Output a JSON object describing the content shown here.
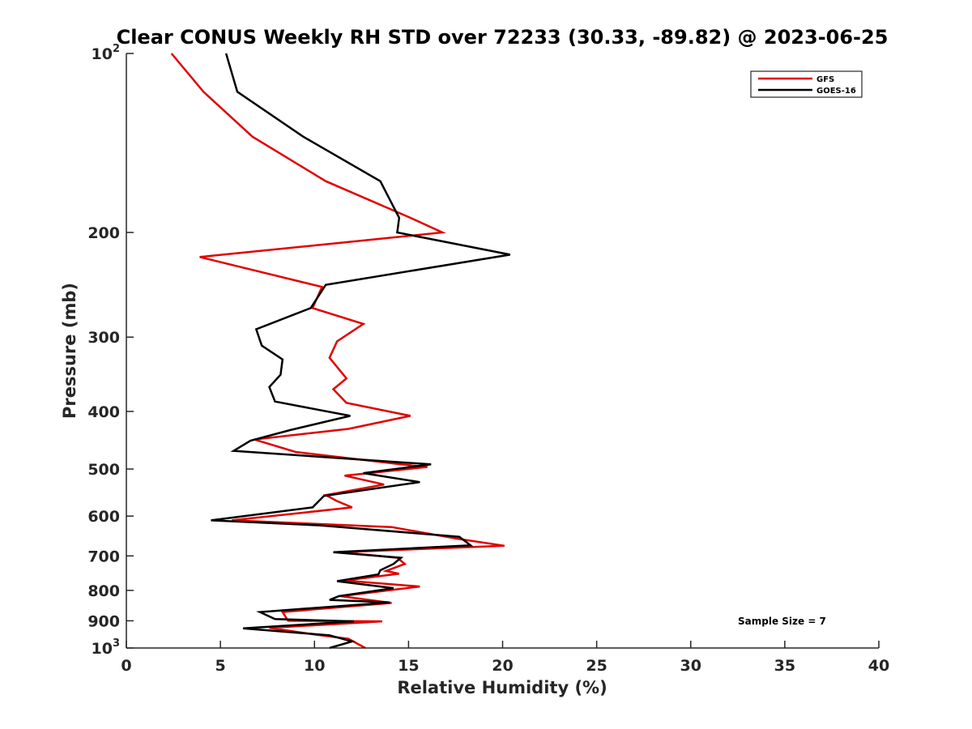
{
  "chart_data": {
    "type": "line",
    "title": "Clear CONUS Weekly RH STD over 72233 (30.33, -89.82) @ 2023-06-25",
    "xlabel": "Relative Humidity (%)",
    "ylabel": "Pressure (mb)",
    "xlim": [
      0,
      40
    ],
    "ylim": [
      100,
      1000
    ],
    "y_scale": "log",
    "y_reversed": true,
    "grid": false,
    "legend_position": "top-right",
    "annotation": "Sample Size = 7",
    "x_ticks": [
      "0",
      "5",
      "10",
      "15",
      "20",
      "25",
      "30",
      "35",
      "40"
    ],
    "y_ticks": [
      {
        "value": 100,
        "base": "10",
        "exp": "2"
      },
      {
        "value": 200,
        "base": "200",
        "exp": ""
      },
      {
        "value": 300,
        "base": "300",
        "exp": ""
      },
      {
        "value": 400,
        "base": "400",
        "exp": ""
      },
      {
        "value": 500,
        "base": "500",
        "exp": ""
      },
      {
        "value": 600,
        "base": "600",
        "exp": ""
      },
      {
        "value": 700,
        "base": "700",
        "exp": ""
      },
      {
        "value": 800,
        "base": "800",
        "exp": ""
      },
      {
        "value": 900,
        "base": "900",
        "exp": ""
      },
      {
        "value": 1000,
        "base": "10",
        "exp": "3"
      }
    ],
    "series": [
      {
        "name": "GFS",
        "color": "#e00000",
        "points": [
          [
            2.4,
            100
          ],
          [
            4.1,
            116
          ],
          [
            6.7,
            138
          ],
          [
            10.6,
            164
          ],
          [
            15.1,
            189
          ],
          [
            16.8,
            200
          ],
          [
            3.9,
            220
          ],
          [
            10.4,
            247
          ],
          [
            9.9,
            268
          ],
          [
            12.6,
            285
          ],
          [
            11.2,
            305
          ],
          [
            10.8,
            325
          ],
          [
            11.7,
            352
          ],
          [
            11.0,
            367
          ],
          [
            11.7,
            387
          ],
          [
            15.1,
            407
          ],
          [
            11.8,
            428
          ],
          [
            6.8,
            446
          ],
          [
            9.0,
            468
          ],
          [
            14.6,
            491
          ],
          [
            16.0,
            496
          ],
          [
            11.6,
            513
          ],
          [
            13.7,
            531
          ],
          [
            10.6,
            553
          ],
          [
            11.2,
            566
          ],
          [
            12.0,
            580
          ],
          [
            5.6,
            610
          ],
          [
            14.1,
            626
          ],
          [
            17.6,
            655
          ],
          [
            20.1,
            673
          ],
          [
            11.4,
            690
          ],
          [
            14.4,
            705
          ],
          [
            14.8,
            722
          ],
          [
            13.8,
            742
          ],
          [
            14.5,
            750
          ],
          [
            11.6,
            770
          ],
          [
            15.6,
            788
          ],
          [
            11.4,
            818
          ],
          [
            12.6,
            828
          ],
          [
            14.1,
            840
          ],
          [
            8.3,
            870
          ],
          [
            8.6,
            900
          ],
          [
            13.6,
            902
          ],
          [
            7.6,
            925
          ],
          [
            10.1,
            950
          ],
          [
            11.8,
            965
          ],
          [
            12.7,
            1000
          ]
        ]
      },
      {
        "name": "GOES-16",
        "color": "#000000",
        "points": [
          [
            5.3,
            100
          ],
          [
            5.9,
            116
          ],
          [
            9.4,
            138
          ],
          [
            13.5,
            164
          ],
          [
            14.5,
            189
          ],
          [
            14.4,
            200
          ],
          [
            20.4,
            218
          ],
          [
            10.6,
            245
          ],
          [
            9.8,
            268
          ],
          [
            6.9,
            291
          ],
          [
            7.2,
            310
          ],
          [
            8.3,
            327
          ],
          [
            8.2,
            347
          ],
          [
            7.6,
            364
          ],
          [
            7.9,
            385
          ],
          [
            11.9,
            407
          ],
          [
            8.7,
            430
          ],
          [
            6.6,
            448
          ],
          [
            5.7,
            466
          ],
          [
            16.2,
            491
          ],
          [
            12.6,
            508
          ],
          [
            15.6,
            526
          ],
          [
            10.5,
            555
          ],
          [
            9.9,
            580
          ],
          [
            4.5,
            610
          ],
          [
            10.3,
            622
          ],
          [
            17.7,
            650
          ],
          [
            18.3,
            672
          ],
          [
            11.0,
            690
          ],
          [
            14.6,
            705
          ],
          [
            14.2,
            722
          ],
          [
            13.5,
            740
          ],
          [
            13.4,
            752
          ],
          [
            11.2,
            772
          ],
          [
            14.2,
            793
          ],
          [
            11.3,
            818
          ],
          [
            10.8,
            830
          ],
          [
            14.0,
            838
          ],
          [
            7.1,
            870
          ],
          [
            7.9,
            894
          ],
          [
            12.1,
            902
          ],
          [
            6.2,
            927
          ],
          [
            10.8,
            952
          ],
          [
            12.0,
            975
          ],
          [
            10.8,
            1000
          ]
        ]
      }
    ]
  }
}
